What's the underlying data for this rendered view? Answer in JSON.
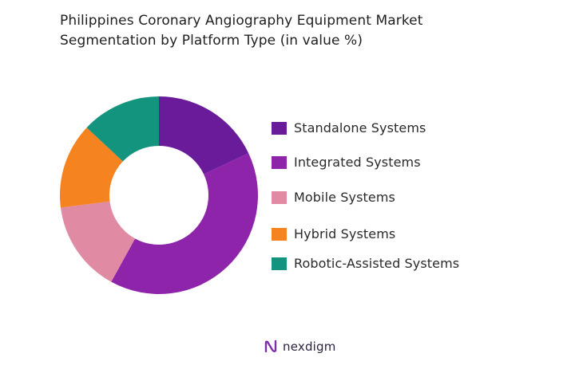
{
  "title": {
    "line1": "Philippines Coronary Angiography Equipment  Market",
    "line2": "Segmentation by Platform Type (in value %)"
  },
  "chart_data": {
    "type": "pie",
    "variant": "donut",
    "categories": [
      "Standalone Systems",
      "Integrated Systems",
      "Mobile Systems",
      "Hybrid Systems",
      "Robotic-Assisted Systems"
    ],
    "values": [
      18,
      40,
      15,
      14,
      13
    ],
    "colors": [
      "#6a1b9a",
      "#8e24aa",
      "#e08aa4",
      "#f5831f",
      "#13947f"
    ],
    "legend_position": "right"
  },
  "logo": {
    "text": "nexdigm",
    "icon": "nexdigm-logo-icon",
    "color": "#7b2fa8"
  }
}
